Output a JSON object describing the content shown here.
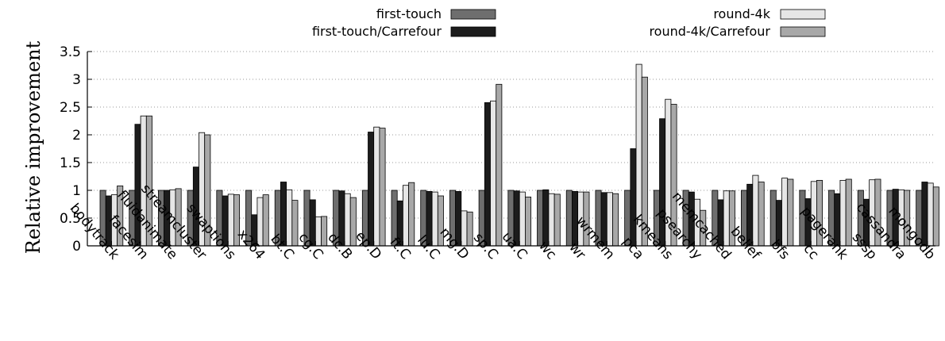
{
  "chart_data": {
    "type": "bar",
    "ylabel": "Relative improvement",
    "xlabel": "",
    "ylim": [
      0,
      3.5
    ],
    "yticks": [
      0,
      0.5,
      1,
      1.5,
      2,
      2.5,
      3,
      3.5
    ],
    "ytick_labels": [
      "0",
      "0.5",
      "1",
      "1.5",
      "2",
      "2.5",
      "3",
      "3.5"
    ],
    "grid": "horizontal dotted",
    "legend_position": "top",
    "categories": [
      "bodytrack",
      "facesim",
      "fluidanimate",
      "streamcluster",
      "swaptions",
      "x264",
      "bt.C",
      "cg.C",
      "dc.B",
      "ep.D",
      "ft.C",
      "lu.C",
      "mg.D",
      "sp.C",
      "ua.C",
      "wc",
      "wr",
      "wrmem",
      "pca",
      "kmeans",
      "psearchy",
      "memcached",
      "belief",
      "bfs",
      "cc",
      "pagerank",
      "sssp",
      "cassandra",
      "mongodb"
    ],
    "series": [
      {
        "name": "first-touch",
        "color": "#6e6e6e",
        "values": [
          1,
          1,
          1,
          1,
          1,
          1,
          1,
          1,
          1,
          1,
          1,
          1,
          1,
          1,
          1,
          1,
          1,
          1,
          1,
          1,
          1,
          1,
          1,
          1,
          1,
          1,
          1,
          1,
          1
        ]
      },
      {
        "name": "first-touch/Carrefour",
        "color": "#1c1c1c",
        "values": [
          0.9,
          2.19,
          1.0,
          1.42,
          0.9,
          0.56,
          1.15,
          0.83,
          0.99,
          2.05,
          0.81,
          0.98,
          0.98,
          2.58,
          0.99,
          1.01,
          0.98,
          0.96,
          1.75,
          2.29,
          0.97,
          0.83,
          1.11,
          0.82,
          0.85,
          0.94,
          0.84,
          1.02,
          1.15
        ]
      },
      {
        "name": "round-4k",
        "color": "#e6e6e6",
        "values": [
          0.92,
          2.34,
          1.01,
          2.04,
          0.93,
          0.87,
          1.01,
          0.52,
          0.94,
          2.14,
          1.09,
          0.97,
          0.63,
          2.61,
          0.97,
          0.94,
          0.97,
          0.96,
          3.27,
          2.64,
          0.84,
          0.99,
          1.27,
          1.22,
          1.16,
          1.18,
          1.19,
          1.01,
          1.13
        ]
      },
      {
        "name": "round-4k/Carrefour",
        "color": "#a8a8a8",
        "values": [
          1.08,
          2.34,
          1.03,
          2.0,
          0.92,
          0.92,
          0.82,
          0.53,
          0.87,
          2.12,
          1.14,
          0.9,
          0.61,
          2.91,
          0.88,
          0.93,
          0.97,
          0.94,
          3.04,
          2.55,
          0.64,
          0.99,
          1.15,
          1.2,
          1.18,
          1.2,
          1.2,
          1.0,
          1.06
        ]
      }
    ]
  }
}
